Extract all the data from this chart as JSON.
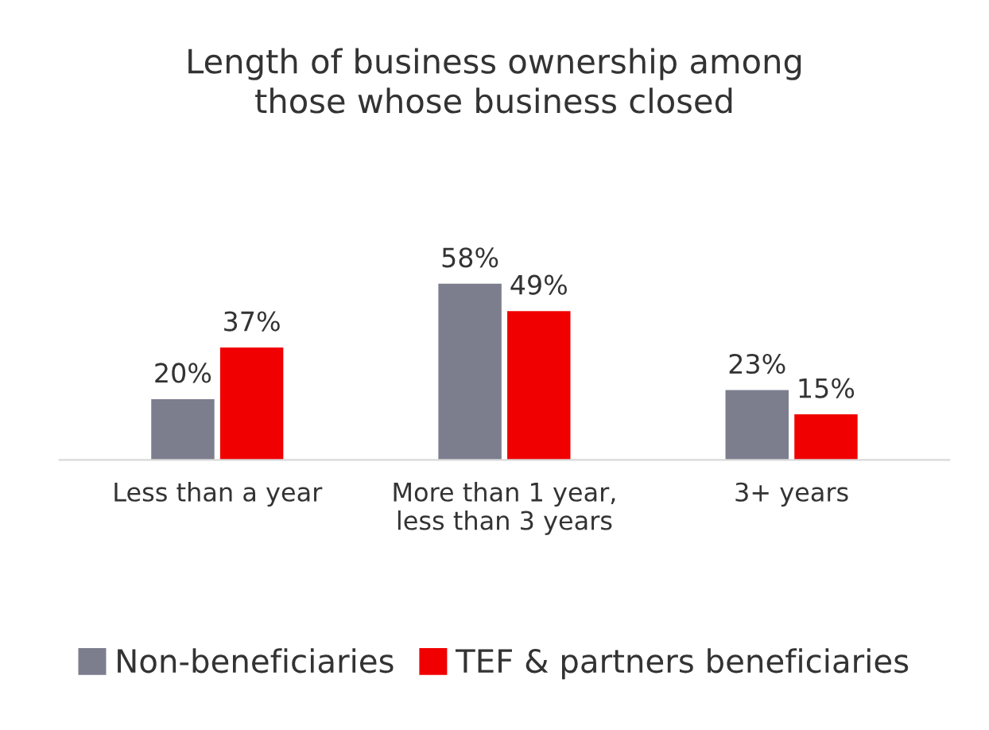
{
  "chart_data": {
    "type": "bar",
    "title": "Length of business ownership among\nthose whose business closed",
    "categories": [
      "Less than a year",
      "More than 1 year,\nless than 3 years",
      "3+ years"
    ],
    "series": [
      {
        "name": "Non-beneficiaries",
        "color": "#7c7e8e",
        "values": [
          20,
          58,
          23
        ],
        "value_labels": [
          "20%",
          "58%",
          "23%"
        ]
      },
      {
        "name": "TEF & partners beneficiaries",
        "color": "#f00000",
        "values": [
          37,
          49,
          15
        ],
        "value_labels": [
          "37%",
          "49%",
          "15%"
        ]
      }
    ],
    "legend": "bottom",
    "grid": false
  }
}
